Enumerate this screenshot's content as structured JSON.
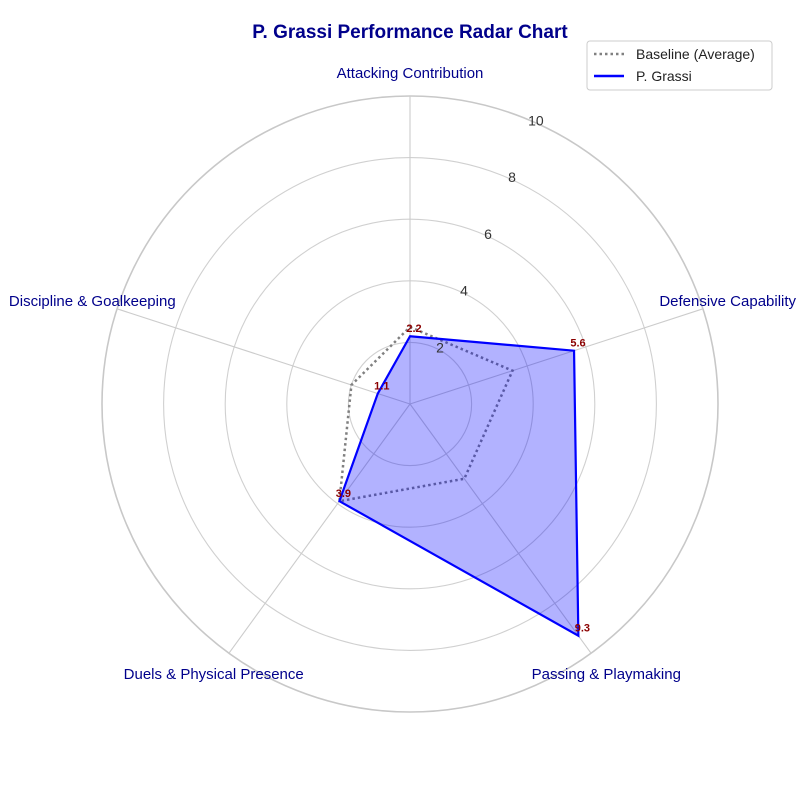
{
  "chart_data": {
    "type": "radar",
    "title": "P. Grassi Performance Radar Chart",
    "axes": [
      "Attacking Contribution",
      "Defensive Capability",
      "Passing & Playmaking",
      "Duels & Physical Presence",
      "Discipline & Goalkeeping"
    ],
    "radial_ticks": [
      2,
      4,
      6,
      8,
      10
    ],
    "rlim": [
      0,
      10
    ],
    "grid": true,
    "legend_position": "top-right",
    "series": [
      {
        "name": "Baseline (Average)",
        "values": [
          2.5,
          3.5,
          3.0,
          3.9,
          2.0
        ],
        "color": "#808080",
        "style": "dotted"
      },
      {
        "name": "P. Grassi",
        "values": [
          2.2,
          5.6,
          9.3,
          3.9,
          1.1
        ],
        "color": "#0000ff",
        "fill": "#0000ff",
        "style": "solid"
      }
    ],
    "data_labels": [
      "2.2",
      "5.6",
      "9.3",
      "3.9",
      "1.1"
    ]
  }
}
